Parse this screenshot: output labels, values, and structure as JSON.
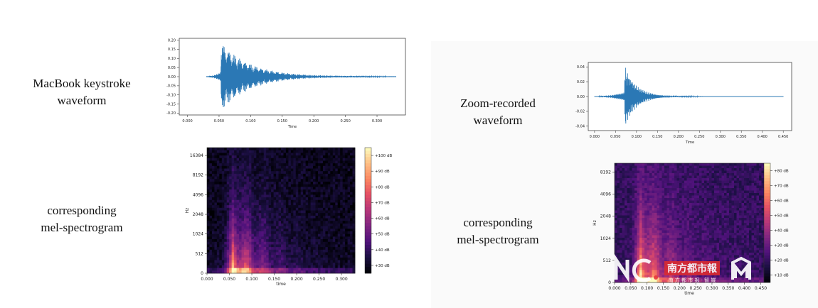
{
  "left": {
    "waveform_caption": [
      "MacBook keystroke",
      "waveform"
    ],
    "spectrogram_caption": [
      "corresponding",
      "mel-spectrogram"
    ]
  },
  "right": {
    "waveform_caption": [
      "Zoom-recorded",
      "waveform"
    ],
    "spectrogram_caption": [
      "corresponding",
      "mel-spectrogram"
    ]
  },
  "watermark": {
    "brand_mark": "NC.",
    "name": "南方都市報",
    "sub": "南 方 都 市 报 · 智 媒"
  },
  "chart_data": [
    {
      "id": "macbook-waveform",
      "type": "line",
      "xlabel": "Time",
      "ylabel": "",
      "xlim": [
        -0.013,
        0.345
      ],
      "ylim": [
        -0.21,
        0.21
      ],
      "xticks": [
        "0.000",
        "0.050",
        "0.100",
        "0.150",
        "0.200",
        "0.250",
        "0.300"
      ],
      "xtick_values": [
        0,
        0.05,
        0.1,
        0.15,
        0.2,
        0.25,
        0.3
      ],
      "yticks": [
        "0.20",
        "0.15",
        "0.10",
        "0.05",
        "0.00",
        "-0.05",
        "-0.10",
        "-0.15",
        "-0.20"
      ],
      "ytick_values": [
        0.2,
        0.15,
        0.1,
        0.05,
        0,
        -0.05,
        -0.1,
        -0.15,
        -0.2
      ],
      "signal": {
        "start": 0.03,
        "onset": 0.053,
        "end": 0.33,
        "peak": 0.19,
        "decay": 0.045,
        "osc": 0.0085
      },
      "color": "#2b78b5"
    },
    {
      "id": "zoom-waveform",
      "type": "line",
      "xlabel": "Time",
      "ylabel": "",
      "xlim": [
        -0.015,
        0.47
      ],
      "ylim": [
        -0.046,
        0.046
      ],
      "xticks": [
        "0.000",
        "0.050",
        "0.100",
        "0.150",
        "0.200",
        "0.250",
        "0.300",
        "0.350",
        "0.400",
        "0.450"
      ],
      "xtick_values": [
        0,
        0.05,
        0.1,
        0.15,
        0.2,
        0.25,
        0.3,
        0.35,
        0.4,
        0.45
      ],
      "yticks": [
        "0.04",
        "0.02",
        "0.00",
        "-0.02",
        "-0.04"
      ],
      "ytick_values": [
        0.04,
        0.02,
        0,
        -0.02,
        -0.04
      ],
      "signal": {
        "start": 0.0,
        "onset": 0.072,
        "end": 0.45,
        "peak": 0.042,
        "decay": 0.028,
        "osc": 0.005
      },
      "color": "#2b78b5"
    },
    {
      "id": "macbook-melspec",
      "type": "heatmap",
      "xlabel": "time",
      "ylabel": "Hz",
      "xlim": [
        0,
        0.33
      ],
      "xticks": [
        "0.000",
        "0.050",
        "0.100",
        "0.150",
        "0.200",
        "0.250",
        "0.300"
      ],
      "xtick_values": [
        0,
        0.05,
        0.1,
        0.15,
        0.2,
        0.25,
        0.3
      ],
      "yticks": [
        "0",
        "512",
        "1024",
        "2048",
        "4096",
        "8192",
        "16384"
      ],
      "colorbar_ticks": [
        "+100 dB",
        "+90 dB",
        "+80 dB",
        "+70 dB",
        "+60 dB",
        "+50 dB",
        "+40 dB",
        "+30 dB"
      ],
      "colorbar_values": [
        100,
        90,
        80,
        70,
        60,
        50,
        40,
        30
      ],
      "crange_db": [
        25,
        105
      ],
      "energy": {
        "onset": 0.055,
        "time_decay": 0.07,
        "low_boost": 1.0,
        "floor": 0.05
      }
    },
    {
      "id": "zoom-melspec",
      "type": "heatmap",
      "xlabel": "time",
      "ylabel": "Hz",
      "xlim": [
        0,
        0.46
      ],
      "xticks": [
        "0.000",
        "0.050",
        "0.100",
        "0.150",
        "0.200",
        "0.250",
        "0.300",
        "0.350",
        "0.400",
        "0.450"
      ],
      "xtick_values": [
        0,
        0.05,
        0.1,
        0.15,
        0.2,
        0.25,
        0.3,
        0.35,
        0.4,
        0.45
      ],
      "yticks": [
        "0",
        "512",
        "1024",
        "2048",
        "4096",
        "8192"
      ],
      "colorbar_ticks": [
        "+80 dB",
        "+70 dB",
        "+60 dB",
        "+50 dB",
        "+40 dB",
        "+30 dB",
        "+20 dB",
        "+10 dB"
      ],
      "colorbar_values": [
        80,
        70,
        60,
        50,
        40,
        30,
        20,
        10
      ],
      "crange_db": [
        5,
        85
      ],
      "energy": {
        "onset": 0.075,
        "time_decay": 0.09,
        "low_boost": 0.6,
        "floor": 0.18
      }
    }
  ]
}
